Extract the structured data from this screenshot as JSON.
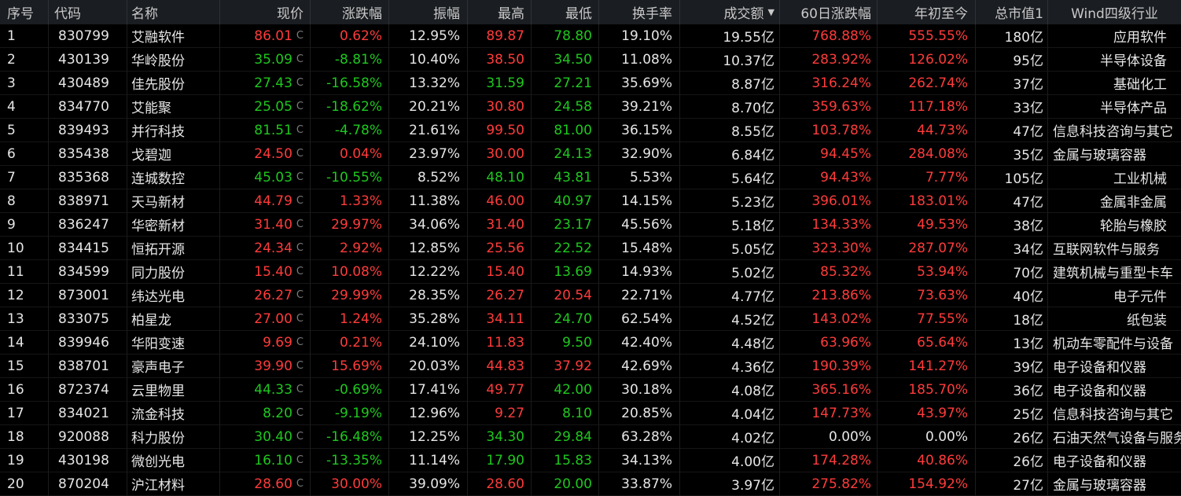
{
  "header": {
    "seq": "序号",
    "code": "代码",
    "name": "名称",
    "price": "现价",
    "change": "涨跌幅",
    "amplitude": "振幅",
    "high": "最高",
    "low": "最低",
    "turnover": "换手率",
    "volume": "成交额",
    "chg60": "60日涨跌幅",
    "ytd": "年初至今",
    "cap": "总市值1",
    "industry": "Wind四级行业",
    "sort_icon": "caret-down-icon"
  },
  "colors": {
    "up": "#ff3b3b",
    "down": "#1ec81e",
    "flat": "#e6e6e6",
    "background": "#000000",
    "header_bg": "#1a1d21"
  },
  "price_tag": "C",
  "rows": [
    {
      "seq": "1",
      "code": "830799",
      "name": "艾融软件",
      "price": "86.01",
      "change": "0.62%",
      "amplitude": "12.95%",
      "high": "89.87",
      "low": "78.80",
      "turnover": "19.10%",
      "volume": "19.55亿",
      "chg60": "768.88%",
      "ytd": "555.55%",
      "cap": "180亿",
      "industry": "应用软件",
      "d": "up",
      "hd": "up",
      "ld": "down",
      "c60": "up",
      "cy": "up",
      "ir": true
    },
    {
      "seq": "2",
      "code": "430139",
      "name": "华岭股份",
      "price": "35.09",
      "change": "-8.81%",
      "amplitude": "10.40%",
      "high": "38.50",
      "low": "34.50",
      "turnover": "11.08%",
      "volume": "10.37亿",
      "chg60": "283.92%",
      "ytd": "126.02%",
      "cap": "95亿",
      "industry": "半导体设备",
      "d": "down",
      "hd": "up",
      "ld": "down",
      "c60": "up",
      "cy": "up",
      "ir": true
    },
    {
      "seq": "3",
      "code": "430489",
      "name": "佳先股份",
      "price": "27.43",
      "change": "-16.58%",
      "amplitude": "13.32%",
      "high": "31.59",
      "low": "27.21",
      "turnover": "35.69%",
      "volume": "8.87亿",
      "chg60": "316.24%",
      "ytd": "262.74%",
      "cap": "37亿",
      "industry": "基础化工",
      "d": "down",
      "hd": "down",
      "ld": "down",
      "c60": "up",
      "cy": "up",
      "ir": true
    },
    {
      "seq": "4",
      "code": "834770",
      "name": "艾能聚",
      "price": "25.05",
      "change": "-18.62%",
      "amplitude": "20.21%",
      "high": "30.80",
      "low": "24.58",
      "turnover": "39.21%",
      "volume": "8.70亿",
      "chg60": "359.63%",
      "ytd": "117.18%",
      "cap": "33亿",
      "industry": "半导体产品",
      "d": "down",
      "hd": "up",
      "ld": "down",
      "c60": "up",
      "cy": "up",
      "ir": true
    },
    {
      "seq": "5",
      "code": "839493",
      "name": "并行科技",
      "price": "81.51",
      "change": "-4.78%",
      "amplitude": "21.61%",
      "high": "99.50",
      "low": "81.00",
      "turnover": "36.15%",
      "volume": "8.55亿",
      "chg60": "103.78%",
      "ytd": "44.73%",
      "cap": "47亿",
      "industry": "信息科技咨询与其它",
      "d": "down",
      "hd": "up",
      "ld": "down",
      "c60": "up",
      "cy": "up",
      "ir": false
    },
    {
      "seq": "6",
      "code": "835438",
      "name": "戈碧迦",
      "price": "24.50",
      "change": "0.04%",
      "amplitude": "23.97%",
      "high": "30.00",
      "low": "24.13",
      "turnover": "32.90%",
      "volume": "6.84亿",
      "chg60": "94.45%",
      "ytd": "284.08%",
      "cap": "35亿",
      "industry": "金属与玻璃容器",
      "d": "up",
      "hd": "up",
      "ld": "down",
      "c60": "up",
      "cy": "up",
      "ir": false
    },
    {
      "seq": "7",
      "code": "835368",
      "name": "连城数控",
      "price": "45.03",
      "change": "-10.55%",
      "amplitude": "8.52%",
      "high": "48.10",
      "low": "43.81",
      "turnover": "5.53%",
      "volume": "5.64亿",
      "chg60": "94.43%",
      "ytd": "7.77%",
      "cap": "105亿",
      "industry": "工业机械",
      "d": "down",
      "hd": "down",
      "ld": "down",
      "c60": "up",
      "cy": "up",
      "ir": true
    },
    {
      "seq": "8",
      "code": "838971",
      "name": "天马新材",
      "price": "44.79",
      "change": "1.33%",
      "amplitude": "11.38%",
      "high": "46.00",
      "low": "40.97",
      "turnover": "14.15%",
      "volume": "5.23亿",
      "chg60": "396.01%",
      "ytd": "183.01%",
      "cap": "47亿",
      "industry": "金属非金属",
      "d": "up",
      "hd": "up",
      "ld": "down",
      "c60": "up",
      "cy": "up",
      "ir": true
    },
    {
      "seq": "9",
      "code": "836247",
      "name": "华密新材",
      "price": "31.40",
      "change": "29.97%",
      "amplitude": "34.06%",
      "high": "31.40",
      "low": "23.17",
      "turnover": "45.56%",
      "volume": "5.18亿",
      "chg60": "134.33%",
      "ytd": "49.53%",
      "cap": "38亿",
      "industry": "轮胎与橡胶",
      "d": "up",
      "hd": "up",
      "ld": "down",
      "c60": "up",
      "cy": "up",
      "ir": true
    },
    {
      "seq": "10",
      "code": "834415",
      "name": "恒拓开源",
      "price": "24.34",
      "change": "2.92%",
      "amplitude": "12.85%",
      "high": "25.56",
      "low": "22.52",
      "turnover": "15.48%",
      "volume": "5.05亿",
      "chg60": "323.30%",
      "ytd": "287.07%",
      "cap": "34亿",
      "industry": "互联网软件与服务",
      "d": "up",
      "hd": "up",
      "ld": "down",
      "c60": "up",
      "cy": "up",
      "ir": false
    },
    {
      "seq": "11",
      "code": "834599",
      "name": "同力股份",
      "price": "15.40",
      "change": "10.08%",
      "amplitude": "12.22%",
      "high": "15.40",
      "low": "13.69",
      "turnover": "14.93%",
      "volume": "5.02亿",
      "chg60": "85.32%",
      "ytd": "53.94%",
      "cap": "70亿",
      "industry": "建筑机械与重型卡车",
      "d": "up",
      "hd": "up",
      "ld": "down",
      "c60": "up",
      "cy": "up",
      "ir": false
    },
    {
      "seq": "12",
      "code": "873001",
      "name": "纬达光电",
      "price": "26.27",
      "change": "29.99%",
      "amplitude": "28.35%",
      "high": "26.27",
      "low": "20.54",
      "turnover": "22.71%",
      "volume": "4.77亿",
      "chg60": "213.86%",
      "ytd": "73.63%",
      "cap": "40亿",
      "industry": "电子元件",
      "d": "up",
      "hd": "up",
      "ld": "up",
      "c60": "up",
      "cy": "up",
      "ir": true
    },
    {
      "seq": "13",
      "code": "833075",
      "name": "柏星龙",
      "price": "27.00",
      "change": "1.24%",
      "amplitude": "35.28%",
      "high": "34.11",
      "low": "24.70",
      "turnover": "62.54%",
      "volume": "4.52亿",
      "chg60": "143.02%",
      "ytd": "77.55%",
      "cap": "18亿",
      "industry": "纸包装",
      "d": "up",
      "hd": "up",
      "ld": "down",
      "c60": "up",
      "cy": "up",
      "ir": true
    },
    {
      "seq": "14",
      "code": "839946",
      "name": "华阳变速",
      "price": "9.69",
      "change": "0.21%",
      "amplitude": "24.10%",
      "high": "11.83",
      "low": "9.50",
      "turnover": "42.40%",
      "volume": "4.48亿",
      "chg60": "63.96%",
      "ytd": "65.64%",
      "cap": "13亿",
      "industry": "机动车零配件与设备",
      "d": "up",
      "hd": "up",
      "ld": "down",
      "c60": "up",
      "cy": "up",
      "ir": false
    },
    {
      "seq": "15",
      "code": "838701",
      "name": "豪声电子",
      "price": "39.90",
      "change": "15.69%",
      "amplitude": "20.03%",
      "high": "44.83",
      "low": "37.92",
      "turnover": "42.69%",
      "volume": "4.36亿",
      "chg60": "190.39%",
      "ytd": "141.27%",
      "cap": "39亿",
      "industry": "电子设备和仪器",
      "d": "up",
      "hd": "up",
      "ld": "up",
      "c60": "up",
      "cy": "up",
      "ir": false
    },
    {
      "seq": "16",
      "code": "872374",
      "name": "云里物里",
      "price": "44.33",
      "change": "-0.69%",
      "amplitude": "17.41%",
      "high": "49.77",
      "low": "42.00",
      "turnover": "30.18%",
      "volume": "4.08亿",
      "chg60": "365.16%",
      "ytd": "185.70%",
      "cap": "36亿",
      "industry": "电子设备和仪器",
      "d": "down",
      "hd": "up",
      "ld": "down",
      "c60": "up",
      "cy": "up",
      "ir": false
    },
    {
      "seq": "17",
      "code": "834021",
      "name": "流金科技",
      "price": "8.20",
      "change": "-9.19%",
      "amplitude": "12.96%",
      "high": "9.27",
      "low": "8.10",
      "turnover": "20.85%",
      "volume": "4.04亿",
      "chg60": "147.73%",
      "ytd": "43.97%",
      "cap": "25亿",
      "industry": "信息科技咨询与其它",
      "d": "down",
      "hd": "up",
      "ld": "down",
      "c60": "up",
      "cy": "up",
      "ir": false
    },
    {
      "seq": "18",
      "code": "920088",
      "name": "科力股份",
      "price": "30.40",
      "change": "-16.48%",
      "amplitude": "12.25%",
      "high": "34.30",
      "low": "29.84",
      "turnover": "63.28%",
      "volume": "4.02亿",
      "chg60": "0.00%",
      "ytd": "0.00%",
      "cap": "26亿",
      "industry": "石油天然气设备与服务",
      "d": "down",
      "hd": "down",
      "ld": "down",
      "c60": "flat",
      "cy": "flat",
      "ir": false
    },
    {
      "seq": "19",
      "code": "430198",
      "name": "微创光电",
      "price": "16.10",
      "change": "-13.35%",
      "amplitude": "11.14%",
      "high": "17.90",
      "low": "15.83",
      "turnover": "34.13%",
      "volume": "4.00亿",
      "chg60": "174.28%",
      "ytd": "40.86%",
      "cap": "26亿",
      "industry": "电子设备和仪器",
      "d": "down",
      "hd": "down",
      "ld": "down",
      "c60": "up",
      "cy": "up",
      "ir": false
    },
    {
      "seq": "20",
      "code": "870204",
      "name": "沪江材料",
      "price": "28.60",
      "change": "30.00%",
      "amplitude": "39.09%",
      "high": "28.60",
      "low": "20.00",
      "turnover": "33.87%",
      "volume": "3.97亿",
      "chg60": "275.82%",
      "ytd": "154.92%",
      "cap": "27亿",
      "industry": "金属与玻璃容器",
      "d": "up",
      "hd": "up",
      "ld": "down",
      "c60": "up",
      "cy": "up",
      "ir": false
    }
  ]
}
